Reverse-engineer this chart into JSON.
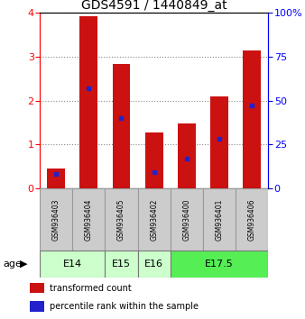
{
  "title": "GDS4591 / 1440849_at",
  "samples": [
    "GSM936403",
    "GSM936404",
    "GSM936405",
    "GSM936402",
    "GSM936400",
    "GSM936401",
    "GSM936406"
  ],
  "transformed_count": [
    0.45,
    3.93,
    2.83,
    1.27,
    1.48,
    2.1,
    3.15
  ],
  "percentile_rank": [
    0.08,
    0.57,
    0.4,
    0.09,
    0.17,
    0.28,
    0.47
  ],
  "group_info": [
    {
      "label": "E14",
      "start": 0,
      "end": 2,
      "color": "#ccffcc"
    },
    {
      "label": "E15",
      "start": 2,
      "end": 3,
      "color": "#ccffcc"
    },
    {
      "label": "E16",
      "start": 3,
      "end": 4,
      "color": "#ccffcc"
    },
    {
      "label": "E17.5",
      "start": 4,
      "end": 7,
      "color": "#55ee55"
    }
  ],
  "ylim_left": [
    0,
    4
  ],
  "ylim_right": [
    0,
    100
  ],
  "yticks_left": [
    0,
    1,
    2,
    3,
    4
  ],
  "yticks_right": [
    0,
    25,
    50,
    75,
    100
  ],
  "bar_color": "#cc1111",
  "dot_color": "#2222cc",
  "grid_color": "#888888",
  "sample_box_color": "#cccccc",
  "bar_width": 0.55
}
